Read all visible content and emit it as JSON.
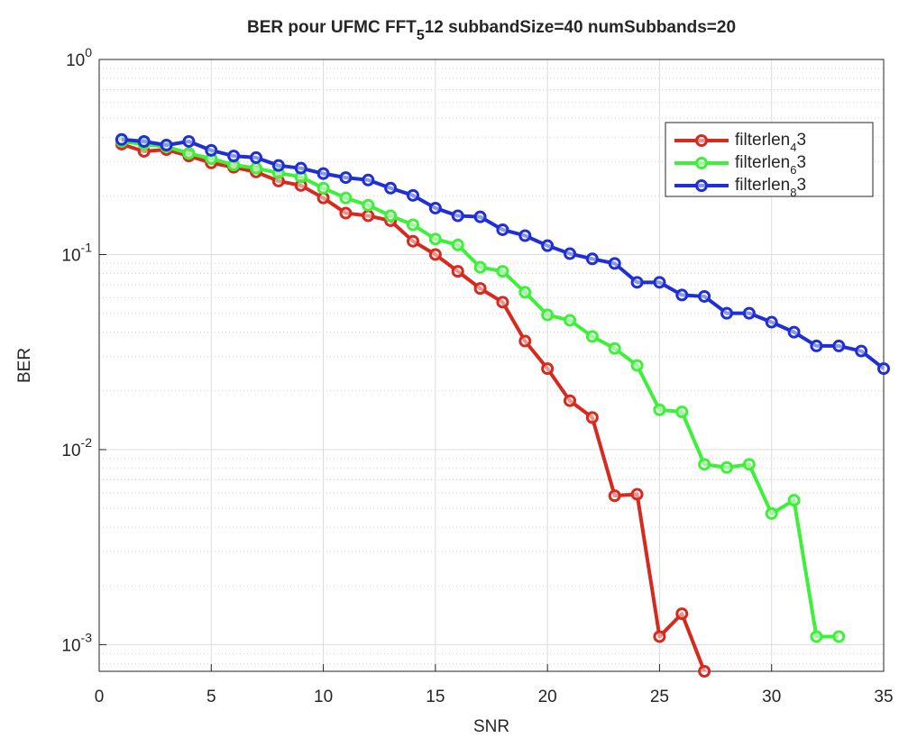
{
  "chart_data": {
    "type": "line",
    "title": [
      "BER pour UFMC FFT",
      "5",
      "12 subbandSize=40 numSubbands=20"
    ],
    "xlabel": "SNR",
    "ylabel": "BER",
    "xlim": [
      0,
      35
    ],
    "xticks": [
      0,
      5,
      10,
      15,
      20,
      25,
      30,
      35
    ],
    "ylim": [
      0.00073,
      1
    ],
    "yticks": [
      {
        "value": 0.001,
        "label": [
          "10",
          "-3"
        ]
      },
      {
        "value": 0.01,
        "label": [
          "10",
          "-2"
        ]
      },
      {
        "value": 0.1,
        "label": [
          "10",
          "-1"
        ]
      },
      {
        "value": 1,
        "label": [
          "10",
          "0"
        ]
      }
    ],
    "log_y": true,
    "grid": true,
    "minor_grid_y": true,
    "legend": "upper right",
    "series": [
      {
        "name": [
          "filterlen",
          "4",
          "3"
        ],
        "color": "#d62a1e",
        "x": [
          1,
          2,
          3,
          4,
          5,
          6,
          7,
          8,
          9,
          10,
          11,
          12,
          13,
          14,
          15,
          16,
          17,
          18,
          19,
          20,
          21,
          22,
          23,
          24,
          25,
          26,
          27
        ],
        "values": [
          0.368,
          0.338,
          0.345,
          0.32,
          0.295,
          0.28,
          0.265,
          0.238,
          0.226,
          0.195,
          0.163,
          0.158,
          0.149,
          0.117,
          0.1,
          0.082,
          0.067,
          0.057,
          0.036,
          0.026,
          0.0178,
          0.0146,
          0.0058,
          0.0059,
          0.0011,
          0.00144,
          0.00073
        ]
      },
      {
        "name": [
          "filterlen",
          "6",
          "3"
        ],
        "color": "#3ef03a",
        "x": [
          1,
          2,
          3,
          4,
          5,
          6,
          7,
          8,
          9,
          10,
          11,
          12,
          13,
          14,
          15,
          16,
          17,
          18,
          19,
          20,
          21,
          22,
          23,
          24,
          25,
          26,
          27,
          28,
          29,
          30,
          31,
          32,
          33
        ],
        "values": [
          0.38,
          0.368,
          0.357,
          0.33,
          0.31,
          0.288,
          0.277,
          0.262,
          0.25,
          0.219,
          0.195,
          0.179,
          0.158,
          0.142,
          0.12,
          0.112,
          0.086,
          0.082,
          0.064,
          0.049,
          0.046,
          0.038,
          0.033,
          0.027,
          0.016,
          0.0156,
          0.0084,
          0.0081,
          0.0084,
          0.0047,
          0.0055,
          0.0011,
          0.0011
        ]
      },
      {
        "name": [
          "filterlen",
          "8",
          "3"
        ],
        "color": "#1e2fd6",
        "x": [
          1,
          2,
          3,
          4,
          5,
          6,
          7,
          8,
          9,
          10,
          11,
          12,
          13,
          14,
          15,
          16,
          17,
          18,
          19,
          20,
          21,
          22,
          23,
          24,
          25,
          26,
          27,
          28,
          29,
          30,
          31,
          32,
          33,
          34,
          35
        ],
        "values": [
          0.389,
          0.38,
          0.364,
          0.38,
          0.342,
          0.32,
          0.314,
          0.286,
          0.277,
          0.26,
          0.248,
          0.241,
          0.219,
          0.201,
          0.173,
          0.158,
          0.156,
          0.134,
          0.125,
          0.111,
          0.101,
          0.095,
          0.09,
          0.072,
          0.072,
          0.062,
          0.061,
          0.05,
          0.05,
          0.045,
          0.04,
          0.034,
          0.034,
          0.032,
          0.026
        ]
      }
    ]
  }
}
